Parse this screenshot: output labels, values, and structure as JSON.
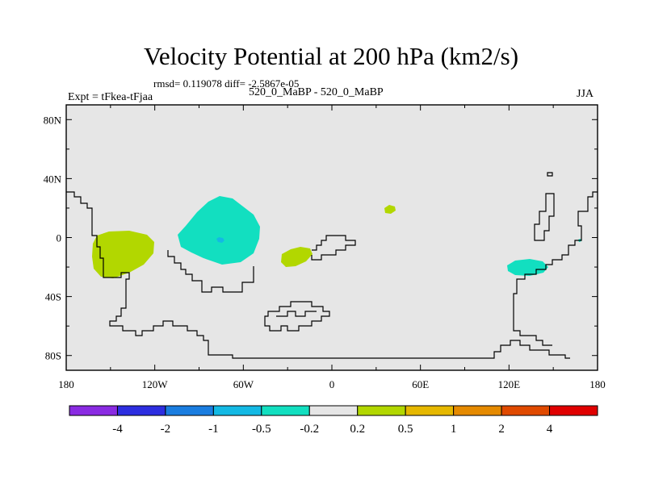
{
  "title": "Velocity Potential at 200 hPa (km2/s)",
  "stats": "rmsd= 0.119078 diff= -2.5867e-05",
  "left_label": "Expt = tFkea-tFjaa",
  "center_label": "520_0_MaBP - 520_0_MaBP",
  "right_label": "JJA",
  "map": {
    "background_color": "#e6e6e6",
    "x_ticks": [
      "180",
      "120W",
      "60W",
      "0",
      "60E",
      "120E",
      "180"
    ],
    "y_ticks": [
      "80N",
      "40N",
      "0",
      "40S",
      "80S"
    ],
    "x_tick_lon": [
      -180,
      -120,
      -60,
      0,
      60,
      120,
      180
    ],
    "y_tick_lat": [
      80,
      40,
      0,
      -40,
      -80
    ]
  },
  "contours": [
    {
      "level": "0.2 to 0.5",
      "color": "#b2d700",
      "region": "South America west"
    },
    {
      "level": "-0.5 to -0.2",
      "color": "#12dfc0",
      "region": "Central Atlantic north"
    },
    {
      "level": "-1 to -0.5",
      "color": "#13b9e4",
      "region": "small cell near equator"
    },
    {
      "level": "0.2 to 0.5",
      "color": "#b2d700",
      "region": "South Atlantic"
    },
    {
      "level": "0.2 to 0.5",
      "color": "#b2d700",
      "region": "small Africa cell"
    },
    {
      "level": "-0.5 to -0.2",
      "color": "#12dfc0",
      "region": "Indonesia"
    },
    {
      "level": "-0.5 to -0.2",
      "color": "#12dfc0",
      "region": "small dot"
    }
  ],
  "colorbar": {
    "colors": [
      "#8a2be2",
      "#2d2ee0",
      "#1a7de0",
      "#13b9e4",
      "#12dfc0",
      "#e6e6e6",
      "#b2d700",
      "#e6b800",
      "#e58a00",
      "#e04a00",
      "#e00000"
    ],
    "labels": [
      "-4",
      "-2",
      "-1",
      "-0.5",
      "-0.2",
      "0.2",
      "0.5",
      "1",
      "2",
      "4"
    ]
  }
}
